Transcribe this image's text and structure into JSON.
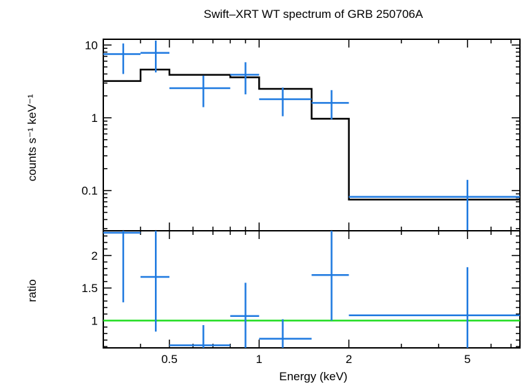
{
  "chart_data": {
    "type": "step-spectrum",
    "title": "Swift–XRT WT spectrum of GRB 250706A",
    "xlabel": "Energy (keV)",
    "xscale": "log",
    "xlim": [
      0.3,
      7.5
    ],
    "x_tick_labels": [
      "0.5",
      "1",
      "2",
      "5"
    ],
    "x_tick_values": [
      0.5,
      1,
      2,
      5
    ],
    "colors": {
      "data": "#1f7ae0",
      "model": "#000000",
      "unity": "#22dd22"
    },
    "panels": [
      {
        "name": "spectrum",
        "ylabel": "counts s⁻¹ keV⁻¹",
        "yscale": "log",
        "ylim": [
          0.028,
          12
        ],
        "y_tick_labels": [
          "0.1",
          "1",
          "10"
        ],
        "y_tick_values": [
          0.1,
          1,
          10
        ],
        "data_points": [
          {
            "x": 0.35,
            "xlo": 0.3,
            "xhi": 0.4,
            "y": 7.5,
            "ylo": 4.0,
            "yhi": 10.5
          },
          {
            "x": 0.45,
            "xlo": 0.4,
            "xhi": 0.5,
            "y": 7.8,
            "ylo": 4.2,
            "yhi": 11.5
          },
          {
            "x": 0.65,
            "xlo": 0.5,
            "xhi": 0.8,
            "y": 2.55,
            "ylo": 1.4,
            "yhi": 3.8
          },
          {
            "x": 0.9,
            "xlo": 0.8,
            "xhi": 1.0,
            "y": 3.9,
            "ylo": 2.1,
            "yhi": 5.8
          },
          {
            "x": 1.2,
            "xlo": 1.0,
            "xhi": 1.5,
            "y": 1.8,
            "ylo": 1.05,
            "yhi": 2.6
          },
          {
            "x": 1.75,
            "xlo": 1.5,
            "xhi": 2.0,
            "y": 1.6,
            "ylo": 0.95,
            "yhi": 2.4
          },
          {
            "x": 5.0,
            "xlo": 2.0,
            "xhi": 7.5,
            "y": 0.082,
            "ylo": 0.028,
            "yhi": 0.14
          }
        ],
        "model_steps": [
          {
            "xlo": 0.3,
            "xhi": 0.4,
            "y": 3.2
          },
          {
            "xlo": 0.4,
            "xhi": 0.5,
            "y": 4.6
          },
          {
            "xlo": 0.5,
            "xhi": 0.8,
            "y": 3.9
          },
          {
            "xlo": 0.8,
            "xhi": 1.0,
            "y": 3.6
          },
          {
            "xlo": 1.0,
            "xhi": 1.5,
            "y": 2.5
          },
          {
            "xlo": 1.5,
            "xhi": 2.0,
            "y": 0.97
          },
          {
            "xlo": 2.0,
            "xhi": 7.5,
            "y": 0.075
          }
        ]
      },
      {
        "name": "ratio",
        "ylabel": "ratio",
        "yscale": "linear",
        "ylim": [
          0.58,
          2.38
        ],
        "y_tick_labels": [
          "1",
          "1.5",
          "2"
        ],
        "y_tick_values": [
          1,
          1.5,
          2
        ],
        "unity_line": 1,
        "data_points": [
          {
            "x": 0.35,
            "xlo": 0.3,
            "xhi": 0.4,
            "y": 2.35,
            "ylo": 1.28,
            "yhi": 2.38
          },
          {
            "x": 0.45,
            "xlo": 0.4,
            "xhi": 0.5,
            "y": 1.67,
            "ylo": 0.83,
            "yhi": 2.38
          },
          {
            "x": 0.65,
            "xlo": 0.5,
            "xhi": 0.8,
            "y": 0.62,
            "ylo": 0.58,
            "yhi": 0.93
          },
          {
            "x": 0.9,
            "xlo": 0.8,
            "xhi": 1.0,
            "y": 1.07,
            "ylo": 0.58,
            "yhi": 1.58
          },
          {
            "x": 1.2,
            "xlo": 1.0,
            "xhi": 1.5,
            "y": 0.72,
            "ylo": 0.58,
            "yhi": 1.02
          },
          {
            "x": 1.75,
            "xlo": 1.5,
            "xhi": 2.0,
            "y": 1.7,
            "ylo": 1.0,
            "yhi": 2.38
          },
          {
            "x": 5.0,
            "xlo": 2.0,
            "xhi": 7.5,
            "y": 1.08,
            "ylo": 0.58,
            "yhi": 1.82
          }
        ]
      }
    ]
  }
}
